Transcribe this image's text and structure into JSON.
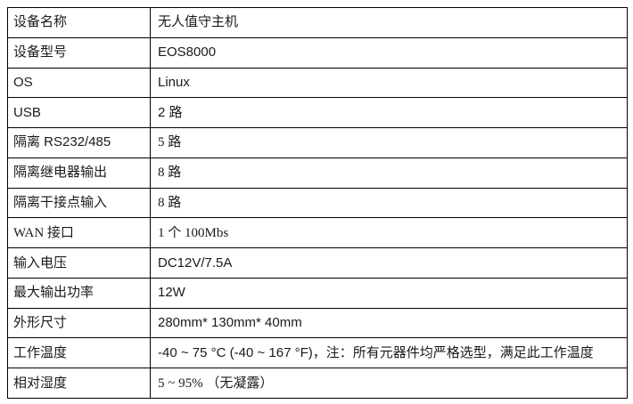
{
  "table": {
    "title_semantic": "device-specification-table",
    "border_color": "#000000",
    "text_color": "#1a1a1a",
    "background_color": "#ffffff",
    "rows": [
      {
        "label": "设备名称",
        "value": "无人值守主机"
      },
      {
        "label": "设备型号",
        "value": "EOS8000"
      },
      {
        "label": "OS",
        "value": "Linux"
      },
      {
        "label": "USB",
        "value": "2 路"
      },
      {
        "label": "隔离 RS232/485",
        "value": "5 路"
      },
      {
        "label": "隔离继电器输出",
        "value": "8 路"
      },
      {
        "label": "隔离干接点输入",
        "value": "8 路"
      },
      {
        "label": "WAN 接口",
        "value": "1 个 100Mbs"
      },
      {
        "label": "输入电压",
        "value": "DC12V/7.5A"
      },
      {
        "label": "最大输出功率",
        "value": "12W"
      },
      {
        "label": "外形尺寸",
        "value": "280mm* 130mm* 40mm"
      },
      {
        "label": "工作温度",
        "value": "-40 ~ 75 °C (-40 ~ 167 °F)，注：所有元器件均严格选型，满足此工作温度"
      },
      {
        "label": "相对湿度",
        "value": "5 ~ 95% （无凝露）"
      }
    ]
  }
}
